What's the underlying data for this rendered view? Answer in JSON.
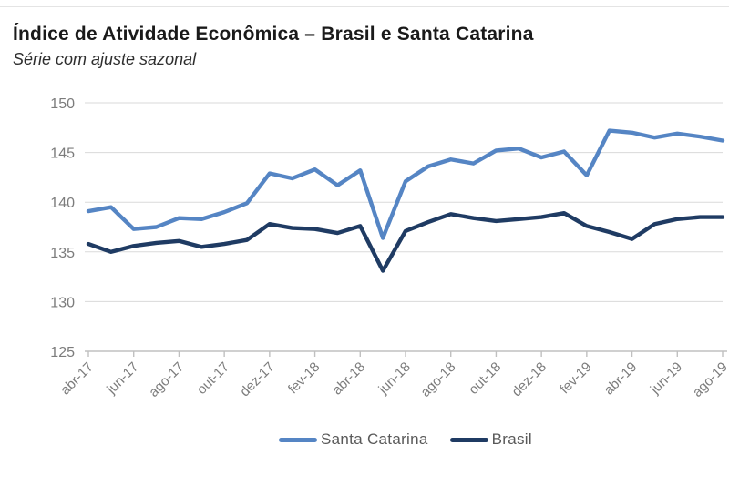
{
  "header": {
    "title": "Índice de Atividade Econômica – Brasil e Santa Catarina",
    "subtitle": "Série com ajuste sazonal"
  },
  "chart_data": {
    "type": "line",
    "title": "Índice de Atividade Econômica – Brasil e Santa Catarina",
    "subtitle": "Série com ajuste sazonal",
    "categories": [
      "abr-17",
      "mai-17",
      "jun-17",
      "jul-17",
      "ago-17",
      "set-17",
      "out-17",
      "nov-17",
      "dez-17",
      "jan-18",
      "fev-18",
      "mar-18",
      "abr-18",
      "mai-18",
      "jun-18",
      "jul-18",
      "ago-18",
      "set-18",
      "out-18",
      "nov-18",
      "dez-18",
      "jan-19",
      "fev-19",
      "mar-19",
      "abr-19",
      "mai-19",
      "jun-19",
      "jul-19",
      "ago-19"
    ],
    "x_tick_labels": [
      "abr-17",
      "jun-17",
      "ago-17",
      "out-17",
      "dez-17",
      "fev-18",
      "abr-18",
      "jun-18",
      "ago-18",
      "out-18",
      "dez-18",
      "fev-19",
      "abr-19",
      "jun-19",
      "ago-19"
    ],
    "series": [
      {
        "name": "Santa Catarina",
        "color": "#5585c4",
        "values": [
          139.1,
          139.5,
          137.3,
          137.5,
          138.4,
          138.3,
          139.0,
          139.9,
          142.9,
          142.4,
          143.3,
          141.7,
          143.2,
          136.4,
          142.1,
          143.6,
          144.3,
          143.9,
          145.2,
          145.4,
          144.5,
          145.1,
          142.7,
          147.2,
          147.0,
          146.5,
          146.9,
          146.6,
          146.2
        ]
      },
      {
        "name": "Brasil",
        "color": "#1f3b63",
        "values": [
          135.8,
          135.0,
          135.6,
          135.9,
          136.1,
          135.5,
          135.8,
          136.2,
          137.8,
          137.4,
          137.3,
          136.9,
          137.6,
          133.1,
          137.1,
          138.0,
          138.8,
          138.4,
          138.1,
          138.3,
          138.5,
          138.9,
          137.6,
          137.0,
          136.3,
          137.8,
          138.3,
          138.5,
          138.5
        ]
      }
    ],
    "ylim": [
      125,
      150
    ],
    "y_ticks": [
      125,
      130,
      135,
      140,
      145,
      150
    ],
    "grid": "horizontal",
    "legend_position": "bottom",
    "axis_label_color": "#7c7c7c",
    "gridline_color": "#dadada",
    "axis_line_color": "#c0c0c0"
  }
}
